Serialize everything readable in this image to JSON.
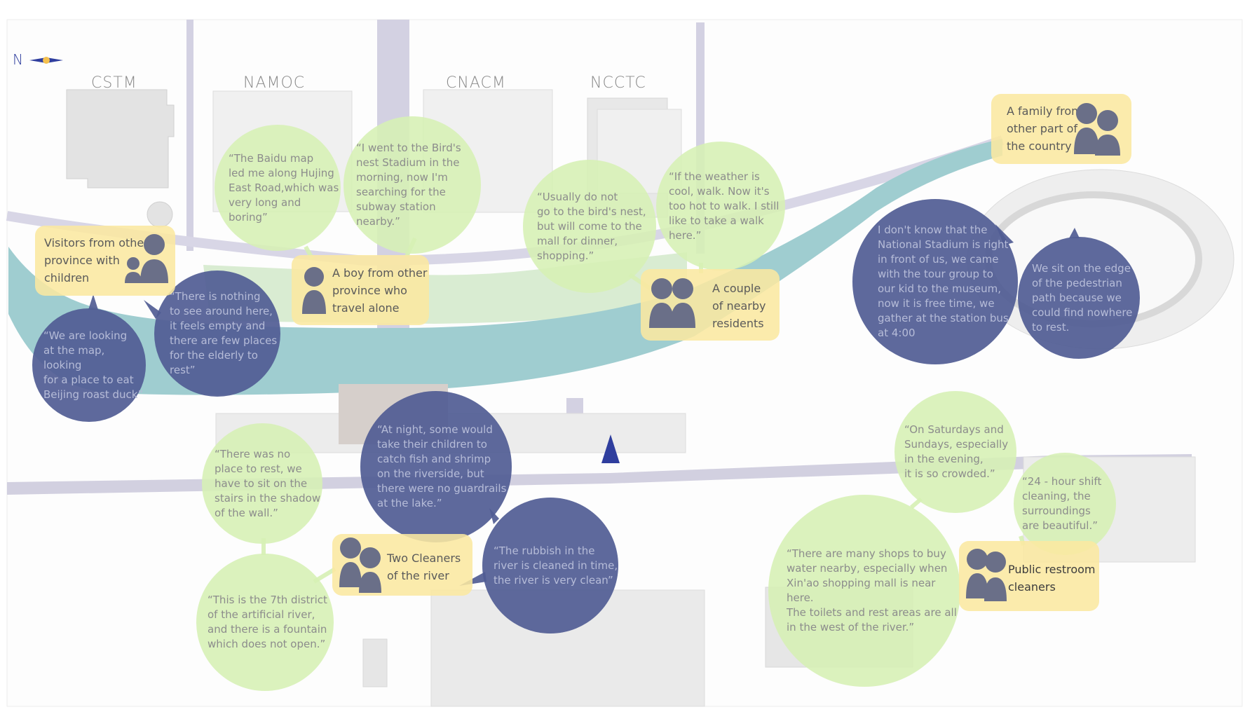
{
  "compass": {
    "letter": "N",
    "icon": "compass-icon"
  },
  "buildings": {
    "cstm": "CSTM",
    "namoc": "NAMOC",
    "cnacm": "CNACM",
    "ncctc": "NCCTC"
  },
  "personas": {
    "visitors": "Visitors from other\nprovince with\nchildren",
    "boy": "A boy from other\nprovince who\ntravel alone",
    "couple": "A couple\nof nearby\nresidents",
    "family": "A family from\nother part of\nthe country",
    "river_cleaners": "Two Cleaners\nof the river",
    "restroom_cleaners": "Public restroom\ncleaners"
  },
  "quotes": {
    "baidu": "“The Baidu map\nled me along Hujing\nEast Road,which was\nvery long and boring”",
    "birds_nest": "“I went to the Bird's\nnest Stadium in the\nmorning, now I'm\nsearching for the\nsubway station nearby.”",
    "usually": "“Usually do not\n go to the bird's nest,\n but will come to the\n mall for dinner,\n shopping.”",
    "weather": "“If the weather is\n cool, walk. Now it's\n too hot to walk. I still\n like to take a walk\n here.”",
    "nothing": "“There is nothing\nto see around here,\nit feels empty and\nthere are few places\n for the elderly to\nrest”",
    "roast_duck": "“We are looking\nat the map, looking\nfor a place to eat\n Beijing roast duck”",
    "national_stadium": "I don't know that the\nNational Stadium is right\nin front of us, we came\nwith the tour group to\nour kid to the museum,\nnow it is free time, we\ngather at the station bus\nat 4:00",
    "pedestrian_edge": "We sit on the edge\nof the pedestrian\npath because we\ncould find nowhere\nto rest.",
    "no_rest": "“There was no\nplace to rest, we\nhave  to sit on the\nstairs in the shadow\nof the wall.”",
    "at_night": "“At night, some would\ntake their children to\ncatch fish and shrimp\non the riverside, but\nthere were no guardrails\nat the lake.”",
    "rubbish": "“The rubbish in the\n river is cleaned in time,\n the river is very clean”",
    "seventh_district": "“This is the 7th district\n of the artificial river,\n and there is a fountain\n which does not open.”",
    "saturdays": "“On Saturdays and\n Sundays, especially\n in the evening,\n it is so crowded.”",
    "shift": "“24 - hour shift\n cleaning, the\n surroundings\n are beautiful.”",
    "shops": "“There are many shops to buy\nwater nearby, especially when\nXin'ao shopping mall is near here.\nThe toilets and rest areas are all\nin the west of the river.”"
  },
  "colors": {
    "river": "#9fcdd0",
    "road": "#d4d2e2",
    "green_bubble": "#d6f0b4",
    "blue_bubble": "#505c94",
    "persona": "#fae8a0",
    "person_icon": "#6a6f88"
  }
}
